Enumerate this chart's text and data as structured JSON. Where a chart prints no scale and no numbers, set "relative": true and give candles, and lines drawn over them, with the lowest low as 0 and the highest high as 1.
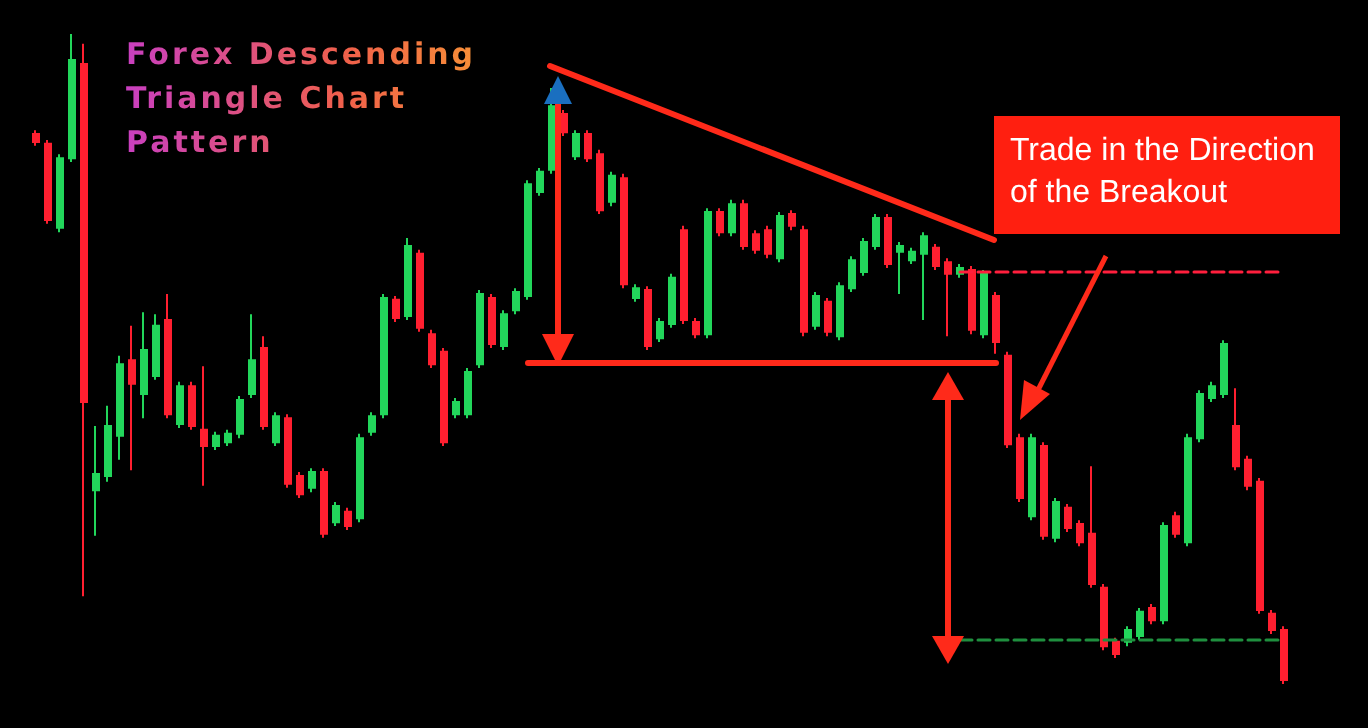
{
  "chart_data": {
    "type": "candlestick",
    "title": "Forex Descending Triangle Chart Pattern",
    "annotations": [
      "Trade in the Direction of the Breakout"
    ],
    "relative": true,
    "categories": [
      null,
      null,
      null,
      null,
      null,
      null,
      null,
      null,
      null,
      null,
      null,
      null,
      null,
      null,
      null,
      null,
      null,
      null,
      null,
      null,
      null,
      null,
      null,
      null,
      null,
      null,
      null,
      null,
      null,
      null,
      null,
      null,
      null,
      null,
      null,
      null,
      null,
      null,
      null,
      null,
      null,
      null,
      null,
      null,
      null,
      null,
      null,
      null,
      null,
      null,
      null,
      null,
      null,
      null,
      null,
      null,
      null,
      null,
      null,
      null,
      null,
      null,
      null,
      null,
      null,
      null,
      null,
      null,
      null,
      null,
      null,
      null,
      null,
      null,
      null,
      null,
      null,
      null,
      null,
      null,
      null,
      null,
      null,
      null,
      null,
      null,
      null,
      null,
      null,
      null,
      null,
      null,
      null,
      null,
      null,
      null,
      null,
      null,
      null,
      null,
      null,
      null,
      null,
      null,
      null
    ],
    "ohlc": [
      [
        0.846,
        0.852,
        0.828,
        0.834
      ],
      [
        0.831,
        0.837,
        0.708,
        0.714
      ],
      [
        0.702,
        0.815,
        0.695,
        0.809
      ],
      [
        0.809,
        1.0,
        0.803,
        0.96
      ],
      [
        0.954,
        0.985,
        0.135,
        0.434
      ],
      [
        0.298,
        0.397,
        0.228,
        0.323
      ],
      [
        0.32,
        0.428,
        0.311,
        0.397
      ],
      [
        0.382,
        0.505,
        0.345,
        0.492
      ],
      [
        0.498,
        0.551,
        0.329,
        0.462
      ],
      [
        0.446,
        0.572,
        0.409,
        0.514
      ],
      [
        0.474,
        0.569,
        0.468,
        0.551
      ],
      [
        0.56,
        0.6,
        0.409,
        0.415
      ],
      [
        0.4,
        0.465,
        0.394,
        0.458
      ],
      [
        0.458,
        0.465,
        0.391,
        0.397
      ],
      [
        0.391,
        0.489,
        0.305,
        0.366
      ],
      [
        0.366,
        0.388,
        0.36,
        0.382
      ],
      [
        0.372,
        0.391,
        0.366,
        0.385
      ],
      [
        0.385,
        0.443,
        0.378,
        0.437
      ],
      [
        0.446,
        0.569,
        0.44,
        0.498
      ],
      [
        0.517,
        0.535,
        0.391,
        0.397
      ],
      [
        0.372,
        0.418,
        0.366,
        0.412
      ],
      [
        0.409,
        0.415,
        0.302,
        0.308
      ],
      [
        0.32,
        0.326,
        0.286,
        0.292
      ],
      [
        0.302,
        0.332,
        0.295,
        0.326
      ],
      [
        0.326,
        0.332,
        0.225,
        0.231
      ],
      [
        0.249,
        0.28,
        0.243,
        0.274
      ],
      [
        0.265,
        0.271,
        0.237,
        0.243
      ],
      [
        0.255,
        0.385,
        0.249,
        0.378
      ],
      [
        0.388,
        0.418,
        0.382,
        0.412
      ],
      [
        0.415,
        0.6,
        0.409,
        0.594
      ],
      [
        0.591,
        0.597,
        0.557,
        0.563
      ],
      [
        0.566,
        0.686,
        0.56,
        0.674
      ],
      [
        0.662,
        0.668,
        0.542,
        0.548
      ],
      [
        0.538,
        0.545,
        0.486,
        0.492
      ],
      [
        0.511,
        0.517,
        0.366,
        0.372
      ],
      [
        0.415,
        0.44,
        0.409,
        0.434
      ],
      [
        0.415,
        0.486,
        0.409,
        0.48
      ],
      [
        0.492,
        0.606,
        0.486,
        0.6
      ],
      [
        0.594,
        0.6,
        0.517,
        0.523
      ],
      [
        0.52,
        0.575,
        0.514,
        0.569
      ],
      [
        0.575,
        0.609,
        0.569,
        0.603
      ],
      [
        0.597,
        0.775,
        0.591,
        0.769
      ],
      [
        0.757,
        0.794,
        0.751,
        0.788
      ],
      [
        0.791,
        0.917,
        0.785,
        0.889
      ],
      [
        0.877,
        0.883,
        0.843,
        0.849
      ],
      [
        0.812,
        0.852,
        0.806,
        0.846
      ],
      [
        0.846,
        0.852,
        0.803,
        0.809
      ],
      [
        0.815,
        0.822,
        0.723,
        0.729
      ],
      [
        0.742,
        0.788,
        0.735,
        0.782
      ],
      [
        0.778,
        0.785,
        0.609,
        0.615
      ],
      [
        0.594,
        0.615,
        0.588,
        0.609
      ],
      [
        0.606,
        0.612,
        0.514,
        0.52
      ],
      [
        0.532,
        0.563,
        0.526,
        0.557
      ],
      [
        0.554,
        0.631,
        0.548,
        0.625
      ],
      [
        0.698,
        0.705,
        0.554,
        0.56
      ],
      [
        0.557,
        0.563,
        0.532,
        0.538
      ],
      [
        0.538,
        0.732,
        0.532,
        0.726
      ],
      [
        0.726,
        0.732,
        0.689,
        0.695
      ],
      [
        0.695,
        0.745,
        0.689,
        0.738
      ],
      [
        0.738,
        0.745,
        0.668,
        0.674
      ],
      [
        0.692,
        0.698,
        0.662,
        0.668
      ],
      [
        0.698,
        0.705,
        0.655,
        0.662
      ],
      [
        0.655,
        0.726,
        0.649,
        0.72
      ],
      [
        0.723,
        0.729,
        0.698,
        0.705
      ],
      [
        0.698,
        0.705,
        0.535,
        0.542
      ],
      [
        0.551,
        0.603,
        0.545,
        0.597
      ],
      [
        0.588,
        0.594,
        0.535,
        0.542
      ],
      [
        0.535,
        0.618,
        0.529,
        0.612
      ],
      [
        0.609,
        0.658,
        0.603,
        0.652
      ],
      [
        0.634,
        0.686,
        0.628,
        0.68
      ],
      [
        0.674,
        0.723,
        0.668,
        0.717
      ],
      [
        0.717,
        0.723,
        0.64,
        0.646
      ],
      [
        0.665,
        0.68,
        0.6,
        0.674
      ],
      [
        0.652,
        0.671,
        0.646,
        0.665
      ],
      [
        0.662,
        0.695,
        0.56,
        0.689
      ],
      [
        0.671,
        0.677,
        0.637,
        0.643
      ],
      [
        0.649,
        0.655,
        0.535,
        0.631
      ],
      [
        0.631,
        0.646,
        0.625,
        0.64
      ],
      [
        0.637,
        0.643,
        0.538,
        0.545
      ],
      [
        0.538,
        0.637,
        0.532,
        0.631
      ],
      [
        0.597,
        0.603,
        0.508,
        0.526
      ],
      [
        0.505,
        0.511,
        0.363,
        0.369
      ],
      [
        0.378,
        0.385,
        0.28,
        0.286
      ],
      [
        0.258,
        0.385,
        0.252,
        0.378
      ],
      [
        0.366,
        0.372,
        0.222,
        0.228
      ],
      [
        0.225,
        0.286,
        0.218,
        0.28
      ],
      [
        0.271,
        0.277,
        0.234,
        0.24
      ],
      [
        0.246,
        0.252,
        0.212,
        0.218
      ],
      [
        0.231,
        0.335,
        0.148,
        0.154
      ],
      [
        0.148,
        0.154,
        0.052,
        0.058
      ],
      [
        0.065,
        0.071,
        0.04,
        0.046
      ],
      [
        0.065,
        0.089,
        0.058,
        0.083
      ],
      [
        0.074,
        0.117,
        0.068,
        0.111
      ],
      [
        0.117,
        0.123,
        0.092,
        0.098
      ],
      [
        0.098,
        0.249,
        0.092,
        0.243
      ],
      [
        0.258,
        0.265,
        0.225,
        0.231
      ],
      [
        0.218,
        0.385,
        0.212,
        0.378
      ],
      [
        0.378,
        0.452,
        0.372,
        0.446
      ],
      [
        0.44,
        0.465,
        0.434,
        0.458
      ],
      [
        0.446,
        0.529,
        0.44,
        0.523
      ],
      [
        0.397,
        0.455,
        0.329,
        0.335
      ],
      [
        0.345,
        0.351,
        0.298,
        0.305
      ],
      [
        0.311,
        0.317,
        0.108,
        0.114
      ],
      [
        0.108,
        0.114,
        0.077,
        0.083
      ],
      [
        0.083,
        0.089,
        0.0,
        0.006
      ]
    ],
    "colors": [
      "#ff1f30",
      "#ff1f30",
      "#22d65b",
      "#22d65b",
      "#ff1f30",
      "#22d65b",
      "#22d65b",
      "#22d65b",
      "#ff1f30",
      "#22d65b",
      "#22d65b",
      "#ff1f30",
      "#22d65b",
      "#ff1f30",
      "#ff1f30",
      "#22d65b",
      "#22d65b",
      "#22d65b",
      "#22d65b",
      "#ff1f30",
      "#22d65b",
      "#ff1f30",
      "#ff1f30",
      "#22d65b",
      "#ff1f30",
      "#22d65b",
      "#ff1f30",
      "#22d65b",
      "#22d65b",
      "#22d65b",
      "#ff1f30",
      "#22d65b",
      "#ff1f30",
      "#ff1f30",
      "#ff1f30",
      "#22d65b",
      "#22d65b",
      "#22d65b",
      "#ff1f30",
      "#22d65b",
      "#22d65b",
      "#22d65b",
      "#22d65b",
      "#22d65b",
      "#ff1f30",
      "#22d65b",
      "#ff1f30",
      "#ff1f30",
      "#22d65b",
      "#ff1f30",
      "#22d65b",
      "#ff1f30",
      "#22d65b",
      "#22d65b",
      "#ff1f30",
      "#ff1f30",
      "#22d65b",
      "#ff1f30",
      "#22d65b",
      "#ff1f30",
      "#ff1f30",
      "#ff1f30",
      "#22d65b",
      "#ff1f30",
      "#ff1f30",
      "#22d65b",
      "#ff1f30",
      "#22d65b",
      "#22d65b",
      "#22d65b",
      "#22d65b",
      "#ff1f30",
      "#22d65b",
      "#22d65b",
      "#22d65b",
      "#ff1f30",
      "#ff1f30",
      "#22d65b",
      "#ff1f30",
      "#22d65b",
      "#ff1f30",
      "#ff1f30",
      "#ff1f30",
      "#22d65b",
      "#ff1f30",
      "#22d65b",
      "#ff1f30",
      "#ff1f30",
      "#ff1f30",
      "#ff1f30",
      "#ff1f30",
      "#22d65b",
      "#22d65b",
      "#ff1f30",
      "#22d65b",
      "#ff1f30",
      "#22d65b",
      "#22d65b",
      "#22d65b",
      "#22d65b",
      "#ff1f30",
      "#ff1f30",
      "#ff1f30",
      "#ff1f30",
      "#ff1f30"
    ],
    "ref_lines": [
      {
        "axis": "y",
        "value": 0.634,
        "color": "#ff1f3d",
        "line_style": "dashed"
      },
      {
        "axis": "y",
        "value": 0.068,
        "color": "#1f8f3f",
        "line_style": "dashed"
      },
      {
        "axis": "y",
        "value": 0.494,
        "color": "#ff2a1a",
        "line_style": "solid"
      }
    ]
  }
}
